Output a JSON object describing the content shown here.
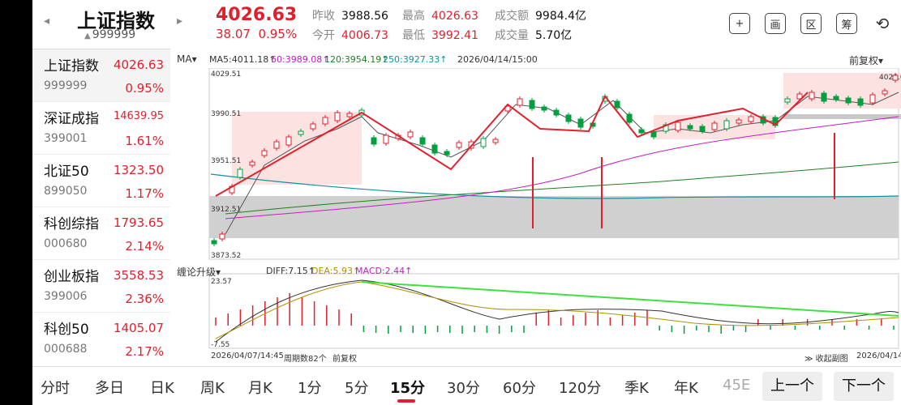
{
  "header": {
    "prev_arrow": "◂",
    "next_arrow": "▸",
    "name": "上证指数",
    "code": "999999",
    "price": "4026.63",
    "change": "38.07",
    "change_pct": "0.95%",
    "stats": {
      "prev_close": {
        "label": "昨收",
        "value": "3988.56"
      },
      "open": {
        "label": "今开",
        "value": "4006.73"
      },
      "high": {
        "label": "最高",
        "value": "4026.63"
      },
      "low": {
        "label": "最低",
        "value": "3992.41"
      },
      "turnover": {
        "label": "成交额",
        "value": "9984.4亿"
      },
      "volume": {
        "label": "成交量",
        "value": "5.70亿"
      }
    },
    "icons": [
      {
        "name": "add-icon",
        "glyph": "+"
      },
      {
        "name": "draw-icon",
        "glyph": "画"
      },
      {
        "name": "region-icon",
        "glyph": "区"
      },
      {
        "name": "chip-icon",
        "glyph": "筹"
      },
      {
        "name": "rotate-screen-icon",
        "glyph": "⟲"
      }
    ]
  },
  "sidebar": {
    "items": [
      {
        "name": "上证指数",
        "code": "999999",
        "price": "4026.63",
        "pct": "0.95%"
      },
      {
        "name": "深证成指",
        "code": "399001",
        "price": "14639.95",
        "pct": "1.61%"
      },
      {
        "name": "北证50",
        "code": "899050",
        "price": "1323.50",
        "pct": "1.17%"
      },
      {
        "name": "科创综指",
        "code": "000680",
        "price": "1793.65",
        "pct": "2.14%"
      },
      {
        "name": "创业板指",
        "code": "399006",
        "price": "3558.53",
        "pct": "2.36%"
      },
      {
        "name": "科创50",
        "code": "000688",
        "price": "1405.07",
        "pct": "2.17%"
      }
    ]
  },
  "chart": {
    "ma_button": "MA",
    "legend": [
      {
        "text": "MA5:4011.18↑",
        "color": "#333333"
      },
      {
        "text": "60:3989.08↑",
        "color": "#c020c0"
      },
      {
        "text": "120:3954.19↑",
        "color": "#208020"
      },
      {
        "text": "250:3927.33↑",
        "color": "#1090a0"
      }
    ],
    "datetime": "2026/04/14/15:00",
    "adjust": "前复权",
    "ind_button": "缠论升级",
    "ind_legend": [
      {
        "text": "DIFF:7.15↑",
        "color": "#333333"
      },
      {
        "text": "DEA:5.93↑",
        "color": "#b09000"
      },
      {
        "text": "MACD:2.44↑",
        "color": "#c020c0"
      }
    ],
    "foot_start": "2026/04/07/14:45",
    "foot_period": "周期数82个",
    "foot_adjust": "前复权",
    "foot_collapse": "≫ 收起副图",
    "foot_end": "2026/04/14/15:00"
  },
  "chart_data": {
    "type": "candlestick",
    "y_max": 4029.51,
    "y_min": 3873.52,
    "y_ticks": [
      "4029.51",
      "3990.51",
      "3951.51",
      "3912.51",
      "3873.52"
    ],
    "last_price_label": "4026.63",
    "macd_top": "23.57",
    "macd_bottom": "-7.55",
    "up_color": "#e0202c",
    "down_color": "#00a040"
  },
  "timeframes": {
    "items": [
      "分时",
      "多日",
      "日K",
      "周K",
      "月K",
      "1分",
      "5分",
      "15分",
      "30分",
      "60分",
      "120分",
      "季K",
      "年K",
      "45E"
    ],
    "active": "15分",
    "prev_btn": "上一个",
    "next_btn": "下一个"
  }
}
